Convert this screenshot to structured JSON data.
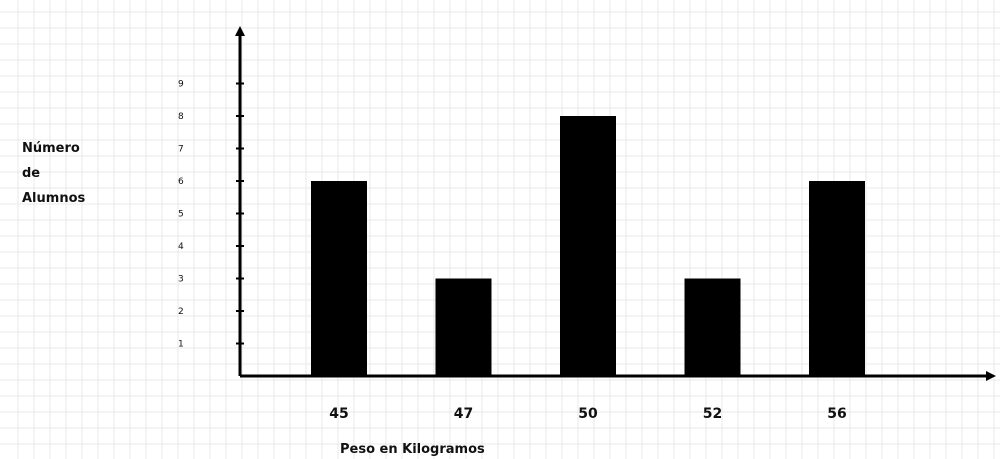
{
  "chart_data": {
    "type": "bar",
    "categories": [
      "45",
      "47",
      "50",
      "52",
      "56"
    ],
    "values": [
      6,
      3,
      8,
      3,
      6
    ],
    "title": "",
    "xlabel": "Peso en Kilogramos",
    "ylabel": [
      "Número",
      "de",
      "Alumnos"
    ],
    "yticks": [
      1,
      2,
      3,
      4,
      5,
      6,
      7,
      8,
      9
    ],
    "ylim": [
      0,
      10
    ],
    "grid": true,
    "bar_color": "#000000",
    "grid_color": "#e9e9e9",
    "axis_color": "#000000"
  }
}
